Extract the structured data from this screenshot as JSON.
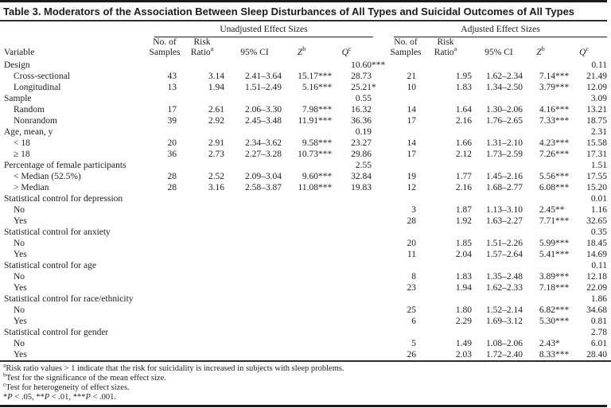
{
  "title": "Table 3. Moderators of the Association Between Sleep Disturbances of All Types and Suicidal Outcomes of All Types",
  "table": {
    "variable_header": "Variable",
    "group_headers": [
      "Unadjusted Effect Sizes",
      "Adjusted Effect Sizes"
    ],
    "sub_headers": [
      {
        "line1": "No. of",
        "line2": "Samples",
        "sup": ""
      },
      {
        "line1": "Risk",
        "line2": "Ratio",
        "sup": "a"
      },
      {
        "line1": "",
        "line2": "95% CI",
        "sup": ""
      },
      {
        "line1": "",
        "line2": "Z",
        "sup": "b"
      },
      {
        "line1": "",
        "line2": "Q",
        "sup": "c"
      }
    ],
    "rows": [
      {
        "label": "Design",
        "indent": false,
        "unadjusted": [
          "",
          "",
          "",
          "",
          "10.60***"
        ],
        "adjusted": [
          "",
          "",
          "",
          "",
          "0.11"
        ]
      },
      {
        "label": "Cross-sectional",
        "indent": true,
        "unadjusted": [
          "43",
          "3.14",
          "2.41–3.64",
          "15.17***",
          "28.73"
        ],
        "adjusted": [
          "21",
          "1.95",
          "1.62–2.34",
          "7.14***",
          "21.49"
        ]
      },
      {
        "label": "Longitudinal",
        "indent": true,
        "unadjusted": [
          "13",
          "1.94",
          "1.51–2.49",
          "5.16***",
          "25.21*"
        ],
        "adjusted": [
          "10",
          "1.83",
          "1.34–2.50",
          "3.79***",
          "12.09"
        ]
      },
      {
        "label": "Sample",
        "indent": false,
        "unadjusted": [
          "",
          "",
          "",
          "",
          "0.55"
        ],
        "adjusted": [
          "",
          "",
          "",
          "",
          "3.09"
        ]
      },
      {
        "label": "Random",
        "indent": true,
        "unadjusted": [
          "17",
          "2.61",
          "2.06–3.30",
          "7.98***",
          "16.32"
        ],
        "adjusted": [
          "14",
          "1.64",
          "1.30–2.06",
          "4.16***",
          "13.21"
        ]
      },
      {
        "label": "Nonrandom",
        "indent": true,
        "unadjusted": [
          "39",
          "2.92",
          "2.45–3.48",
          "11.91***",
          "36.36"
        ],
        "adjusted": [
          "17",
          "2.16",
          "1.76–2.65",
          "7.33***",
          "18.75"
        ]
      },
      {
        "label": "Age, mean, y",
        "indent": false,
        "unadjusted": [
          "",
          "",
          "",
          "",
          "0.19"
        ],
        "adjusted": [
          "",
          "",
          "",
          "",
          "2.31"
        ]
      },
      {
        "label": "< 18",
        "indent": true,
        "unadjusted": [
          "20",
          "2.91",
          "2.34–3.62",
          "9.58***",
          "23.27"
        ],
        "adjusted": [
          "14",
          "1.66",
          "1.31–2.10",
          "4.23***",
          "15.58"
        ]
      },
      {
        "label": "≥ 18",
        "indent": true,
        "unadjusted": [
          "36",
          "2.73",
          "2.27–3.28",
          "10.73***",
          "29.86"
        ],
        "adjusted": [
          "17",
          "2.12",
          "1.73–2.59",
          "7.26***",
          "17.31"
        ]
      },
      {
        "label": "Percentage of female participants",
        "indent": false,
        "unadjusted": [
          "",
          "",
          "",
          "",
          "2.55"
        ],
        "adjusted": [
          "",
          "",
          "",
          "",
          "1.51"
        ]
      },
      {
        "label": "< Median (52.5%)",
        "indent": true,
        "unadjusted": [
          "28",
          "2.52",
          "2.09–3.04",
          "9.60***",
          "32.84"
        ],
        "adjusted": [
          "19",
          "1.77",
          "1.45–2.16",
          "5.56***",
          "17.55"
        ]
      },
      {
        "label": "> Median",
        "indent": true,
        "unadjusted": [
          "28",
          "3.16",
          "2.58–3.87",
          "11.08***",
          "19.83"
        ],
        "adjusted": [
          "12",
          "2.16",
          "1.68–2.77",
          "6.08***",
          "15.20"
        ]
      },
      {
        "label": "Statistical control for depression",
        "indent": false,
        "unadjusted": [
          "",
          "",
          "",
          "",
          ""
        ],
        "adjusted": [
          "",
          "",
          "",
          "",
          "0.01"
        ]
      },
      {
        "label": "No",
        "indent": true,
        "unadjusted": [
          "",
          "",
          "",
          "",
          ""
        ],
        "adjusted": [
          "3",
          "1.87",
          "1.13–3.10",
          "2.45**",
          "1.16"
        ]
      },
      {
        "label": "Yes",
        "indent": true,
        "unadjusted": [
          "",
          "",
          "",
          "",
          ""
        ],
        "adjusted": [
          "28",
          "1.92",
          "1.63–2.27",
          "7.71***",
          "32.65"
        ]
      },
      {
        "label": "Statistical control for anxiety",
        "indent": false,
        "unadjusted": [
          "",
          "",
          "",
          "",
          ""
        ],
        "adjusted": [
          "",
          "",
          "",
          "",
          "0.35"
        ]
      },
      {
        "label": "No",
        "indent": true,
        "unadjusted": [
          "",
          "",
          "",
          "",
          ""
        ],
        "adjusted": [
          "20",
          "1.85",
          "1.51–2.26",
          "5.99***",
          "18.45"
        ]
      },
      {
        "label": "Yes",
        "indent": true,
        "unadjusted": [
          "",
          "",
          "",
          "",
          ""
        ],
        "adjusted": [
          "11",
          "2.04",
          "1.57–2.64",
          "5.41***",
          "14.69"
        ]
      },
      {
        "label": "Statistical control for age",
        "indent": false,
        "unadjusted": [
          "",
          "",
          "",
          "",
          ""
        ],
        "adjusted": [
          "",
          "",
          "",
          "",
          "0.11"
        ]
      },
      {
        "label": "No",
        "indent": true,
        "unadjusted": [
          "",
          "",
          "",
          "",
          ""
        ],
        "adjusted": [
          "8",
          "1.83",
          "1.35–2.48",
          "3.89***",
          "12.18"
        ]
      },
      {
        "label": "Yes",
        "indent": true,
        "unadjusted": [
          "",
          "",
          "",
          "",
          ""
        ],
        "adjusted": [
          "23",
          "1.94",
          "1.62–2.33",
          "7.18***",
          "22.09"
        ]
      },
      {
        "label": "Statistical control for race/ethnicity",
        "indent": false,
        "unadjusted": [
          "",
          "",
          "",
          "",
          ""
        ],
        "adjusted": [
          "",
          "",
          "",
          "",
          "1.86"
        ]
      },
      {
        "label": "No",
        "indent": true,
        "unadjusted": [
          "",
          "",
          "",
          "",
          ""
        ],
        "adjusted": [
          "25",
          "1.80",
          "1.52–2.14",
          "6.82***",
          "34.68"
        ]
      },
      {
        "label": "Yes",
        "indent": true,
        "unadjusted": [
          "",
          "",
          "",
          "",
          ""
        ],
        "adjusted": [
          "6",
          "2.29",
          "1.69–3.12",
          "5.30***",
          "0.81"
        ]
      },
      {
        "label": "Statistical control for gender",
        "indent": false,
        "unadjusted": [
          "",
          "",
          "",
          "",
          ""
        ],
        "adjusted": [
          "",
          "",
          "",
          "",
          "2.78"
        ]
      },
      {
        "label": "No",
        "indent": true,
        "unadjusted": [
          "",
          "",
          "",
          "",
          ""
        ],
        "adjusted": [
          "5",
          "1.49",
          "1.08–2.06",
          "2.43*",
          "6.01"
        ]
      },
      {
        "label": "Yes",
        "indent": true,
        "unadjusted": [
          "",
          "",
          "",
          "",
          ""
        ],
        "adjusted": [
          "26",
          "2.03",
          "1.72–2.40",
          "8.33***",
          "28.40"
        ]
      }
    ]
  },
  "footnotes": {
    "items": [
      {
        "sup": "a",
        "text": "Risk ratio values > 1 indicate that the risk for suicidality is increased in subjects with sleep problems."
      },
      {
        "sup": "b",
        "text": "Test for the significance of the mean effect size."
      },
      {
        "sup": "c",
        "text": "Test for heterogeneity of effect sizes."
      }
    ],
    "sig": [
      {
        "stars": "*",
        "p": "P",
        "rest": " < .05, "
      },
      {
        "stars": "**",
        "p": "P",
        "rest": " < .01, "
      },
      {
        "stars": "***",
        "p": "P",
        "rest": " < .001."
      }
    ]
  }
}
